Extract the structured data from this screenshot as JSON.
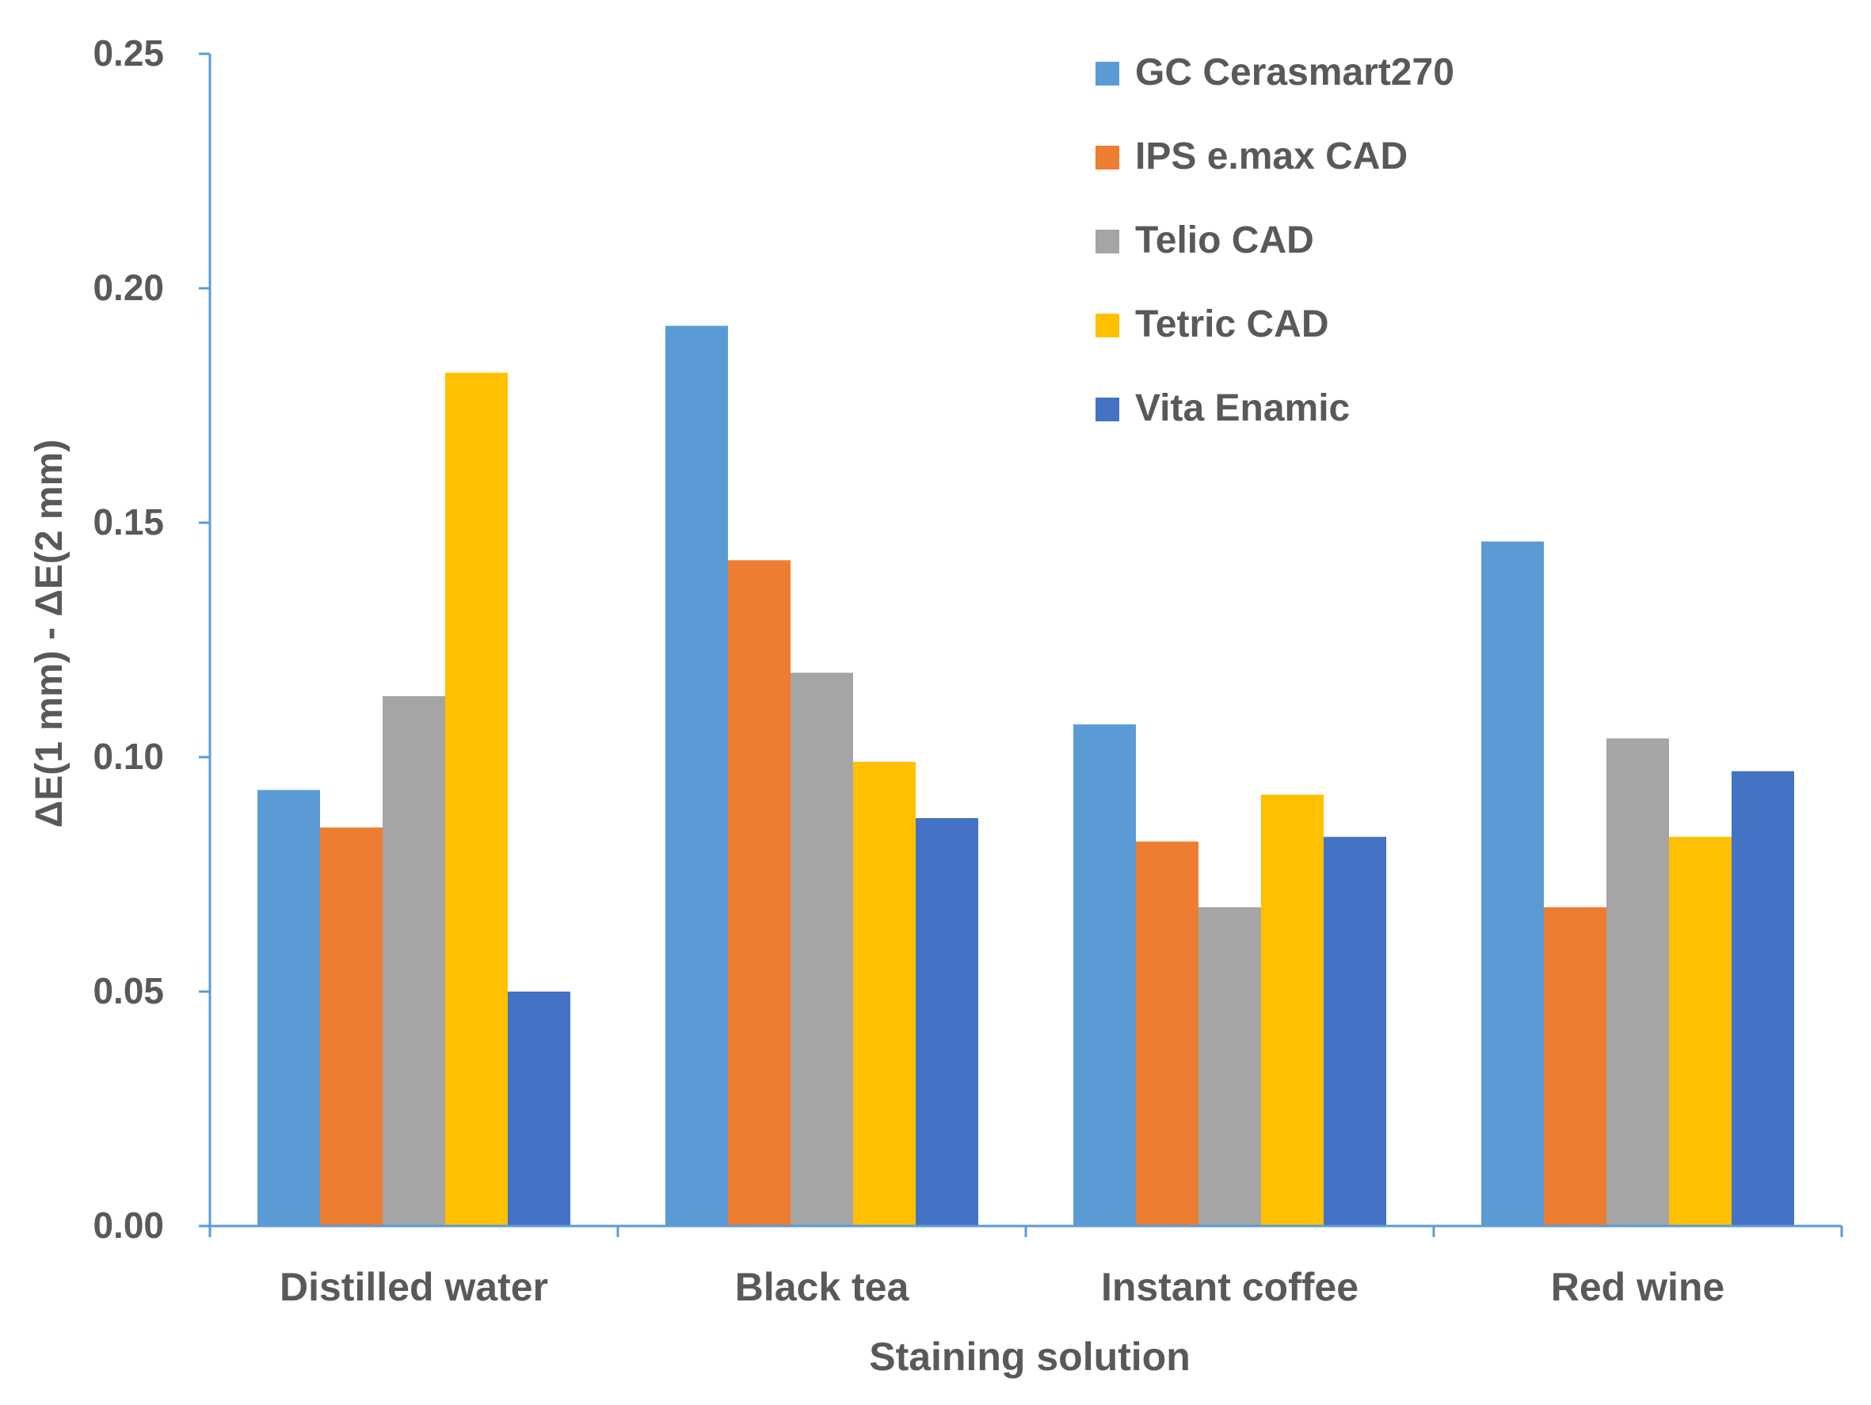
{
  "chart_data": {
    "type": "bar",
    "title": "",
    "xlabel": "Staining solution",
    "ylabel": "ΔE(1 mm) - ΔE(2 mm)",
    "ylim": [
      0,
      0.25
    ],
    "yticks": [
      "0.00",
      "0.05",
      "0.10",
      "0.15",
      "0.20",
      "0.25"
    ],
    "grid": false,
    "legend_position": "top-right",
    "categories": [
      "Distilled water",
      "Black tea",
      "Instant coffee",
      "Red wine"
    ],
    "series": [
      {
        "name": "GC Cerasmart270",
        "color": "#5B9BD5",
        "values": [
          0.093,
          0.192,
          0.107,
          0.146
        ]
      },
      {
        "name": "IPS e.max CAD",
        "color": "#ED7D31",
        "values": [
          0.085,
          0.142,
          0.082,
          0.068
        ]
      },
      {
        "name": "Telio CAD",
        "color": "#A5A5A5",
        "values": [
          0.113,
          0.118,
          0.068,
          0.104
        ]
      },
      {
        "name": "Tetric CAD",
        "color": "#FFC000",
        "values": [
          0.182,
          0.099,
          0.092,
          0.083
        ]
      },
      {
        "name": "Vita Enamic",
        "color": "#4472C4",
        "values": [
          0.05,
          0.087,
          0.083,
          0.097
        ]
      }
    ]
  }
}
